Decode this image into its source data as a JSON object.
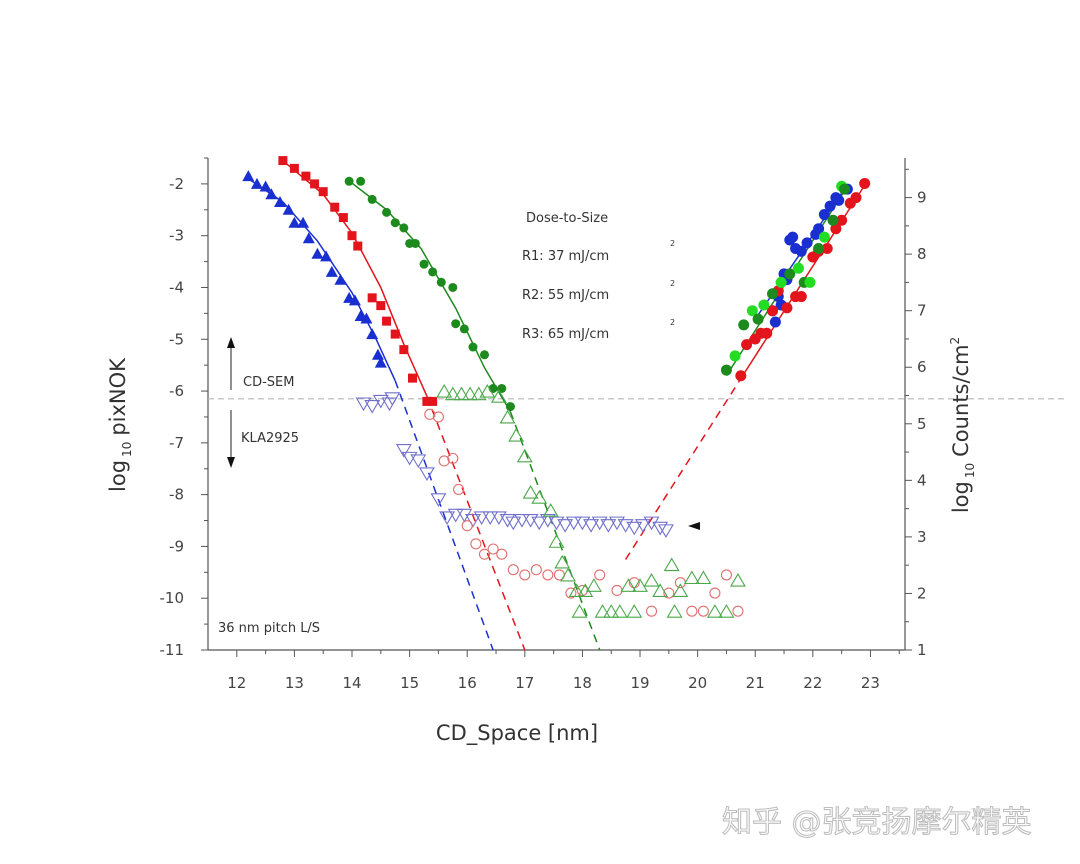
{
  "chart_data": {
    "type": "scatter",
    "xlabel": "CD_Space  [nm]",
    "ylabel_left_main": "log",
    "ylabel_left_sub": "10",
    "ylabel_left_rest": "pixNOK",
    "ylabel_right_main": "log",
    "ylabel_right_sub": "10",
    "ylabel_right_rest": "Counts/cm",
    "ylabel_right_sup": "2",
    "xlim": [
      11.5,
      23.6
    ],
    "ylim_left": [
      -11,
      -1.5
    ],
    "ylim_right": [
      1,
      9.7
    ],
    "x_ticks": [
      "12",
      "13",
      "14",
      "15",
      "16",
      "17",
      "18",
      "19",
      "20",
      "21",
      "22",
      "23"
    ],
    "y_left_ticks": [
      "-2",
      "-3",
      "-4",
      "-5",
      "-6",
      "-7",
      "-8",
      "-9",
      "-10",
      "-11"
    ],
    "y_right_ticks": [
      "1",
      "2",
      "3",
      "4",
      "5",
      "6",
      "7",
      "8",
      "9"
    ],
    "legend_title": "Dose-to-Size",
    "legend_entries": [
      "R1: 37 mJ/cm",
      "R2: 55 mJ/cm",
      "R3: 65 mJ/cm"
    ],
    "legend_superscript": "2",
    "annotations": {
      "cd_sem": "CD-SEM",
      "kla": "KLA2925",
      "pitch": "36 nm pitch L/S"
    },
    "threshold_line_y": -6.15,
    "colors": {
      "R1": "#1a2fd0",
      "R2": "#e3141b",
      "R3": "#1c8a1c",
      "R3_light": "#22dd22",
      "R1_open": "#7070cc",
      "R2_open": "#e07070",
      "R3_open": "#4aa84a"
    },
    "series": [
      {
        "name": "R1",
        "axis": "left",
        "marker": "triangle-filled",
        "points": [
          [
            12.2,
            -1.85
          ],
          [
            12.35,
            -2.0
          ],
          [
            12.5,
            -2.05
          ],
          [
            12.6,
            -2.2
          ],
          [
            12.75,
            -2.35
          ],
          [
            12.9,
            -2.5
          ],
          [
            13.0,
            -2.75
          ],
          [
            13.15,
            -2.75
          ],
          [
            13.25,
            -3.05
          ],
          [
            13.4,
            -3.35
          ],
          [
            13.55,
            -3.4
          ],
          [
            13.65,
            -3.7
          ],
          [
            13.8,
            -3.85
          ],
          [
            13.95,
            -4.2
          ],
          [
            14.05,
            -4.25
          ],
          [
            14.15,
            -4.55
          ],
          [
            14.25,
            -4.6
          ],
          [
            14.35,
            -4.9
          ],
          [
            14.45,
            -5.3
          ],
          [
            14.5,
            -5.45
          ]
        ]
      },
      {
        "name": "R2",
        "axis": "left",
        "marker": "square-filled",
        "points": [
          [
            12.8,
            -1.55
          ],
          [
            13.0,
            -1.7
          ],
          [
            13.2,
            -1.85
          ],
          [
            13.35,
            -2.0
          ],
          [
            13.5,
            -2.15
          ],
          [
            13.7,
            -2.45
          ],
          [
            13.85,
            -2.65
          ],
          [
            14.0,
            -3.0
          ],
          [
            14.1,
            -3.2
          ],
          [
            14.35,
            -4.2
          ],
          [
            14.5,
            -4.35
          ],
          [
            14.6,
            -4.65
          ],
          [
            14.75,
            -4.9
          ],
          [
            14.9,
            -5.2
          ],
          [
            15.05,
            -5.75
          ],
          [
            15.3,
            -6.2
          ],
          [
            15.4,
            -6.2
          ]
        ]
      },
      {
        "name": "R3",
        "axis": "left",
        "marker": "circle-filled",
        "points": [
          [
            13.95,
            -1.95
          ],
          [
            14.15,
            -1.95
          ],
          [
            14.35,
            -2.3
          ],
          [
            14.6,
            -2.55
          ],
          [
            14.75,
            -2.75
          ],
          [
            14.9,
            -2.85
          ],
          [
            15.0,
            -3.15
          ],
          [
            15.1,
            -3.15
          ],
          [
            15.25,
            -3.55
          ],
          [
            15.4,
            -3.7
          ],
          [
            15.55,
            -3.9
          ],
          [
            15.75,
            -4.0
          ],
          [
            15.8,
            -4.7
          ],
          [
            15.95,
            -4.8
          ],
          [
            16.1,
            -5.15
          ],
          [
            16.3,
            -5.3
          ],
          [
            16.45,
            -5.95
          ],
          [
            16.6,
            -5.95
          ],
          [
            16.75,
            -6.3
          ]
        ]
      },
      {
        "name": "R1 right",
        "axis": "right",
        "marker": "circle-filled",
        "points": [
          [
            21.3,
            7.0
          ],
          [
            21.35,
            6.8
          ],
          [
            21.4,
            7.25
          ],
          [
            21.45,
            7.1
          ],
          [
            21.5,
            7.65
          ],
          [
            21.55,
            7.55
          ],
          [
            21.6,
            8.25
          ],
          [
            21.65,
            8.3
          ],
          [
            21.7,
            8.1
          ],
          [
            21.8,
            8.05
          ],
          [
            21.9,
            8.2
          ],
          [
            22.05,
            8.35
          ],
          [
            22.1,
            8.45
          ],
          [
            22.2,
            8.7
          ],
          [
            22.3,
            8.85
          ],
          [
            22.4,
            9.0
          ],
          [
            22.45,
            8.95
          ],
          [
            22.6,
            9.15
          ]
        ]
      },
      {
        "name": "R2 right",
        "axis": "right",
        "marker": "circle-filled",
        "points": [
          [
            20.75,
            5.85
          ],
          [
            20.85,
            6.4
          ],
          [
            21.0,
            6.5
          ],
          [
            21.1,
            6.6
          ],
          [
            21.2,
            6.6
          ],
          [
            21.3,
            7.0
          ],
          [
            21.4,
            7.35
          ],
          [
            21.55,
            7.05
          ],
          [
            21.7,
            7.25
          ],
          [
            21.8,
            7.25
          ],
          [
            22.0,
            7.95
          ],
          [
            22.1,
            8.05
          ],
          [
            22.25,
            8.1
          ],
          [
            22.4,
            8.45
          ],
          [
            22.5,
            8.6
          ],
          [
            22.65,
            8.9
          ],
          [
            22.75,
            9.0
          ],
          [
            22.9,
            9.25
          ]
        ]
      },
      {
        "name": "R3 right",
        "axis": "right",
        "marker": "circle-filled",
        "points": [
          [
            20.5,
            5.95
          ],
          [
            20.65,
            6.2
          ],
          [
            20.8,
            6.75
          ],
          [
            20.95,
            7.0
          ],
          [
            21.05,
            6.85
          ],
          [
            21.15,
            7.1
          ],
          [
            21.3,
            7.3
          ],
          [
            21.45,
            7.5
          ],
          [
            21.6,
            7.65
          ],
          [
            21.75,
            7.75
          ],
          [
            21.85,
            7.5
          ],
          [
            21.95,
            7.5
          ],
          [
            22.1,
            8.1
          ],
          [
            22.2,
            8.3
          ],
          [
            22.35,
            8.6
          ],
          [
            22.5,
            9.2
          ],
          [
            22.55,
            9.15
          ]
        ]
      },
      {
        "name": "R1 open",
        "axis": "left",
        "marker": "triangle-down-open",
        "points": [
          [
            14.2,
            -6.25
          ],
          [
            14.35,
            -6.3
          ],
          [
            14.5,
            -6.2
          ],
          [
            14.65,
            -6.25
          ],
          [
            14.7,
            -6.15
          ],
          [
            14.9,
            -7.15
          ],
          [
            15.0,
            -7.3
          ],
          [
            15.15,
            -7.35
          ],
          [
            15.3,
            -7.6
          ],
          [
            15.5,
            -8.1
          ],
          [
            15.65,
            -8.45
          ],
          [
            15.8,
            -8.4
          ],
          [
            15.95,
            -8.4
          ],
          [
            16.1,
            -8.5
          ],
          [
            16.25,
            -8.45
          ],
          [
            16.4,
            -8.45
          ],
          [
            16.55,
            -8.45
          ],
          [
            16.7,
            -8.5
          ],
          [
            16.8,
            -8.55
          ],
          [
            16.95,
            -8.5
          ],
          [
            17.1,
            -8.5
          ],
          [
            17.25,
            -8.55
          ],
          [
            17.4,
            -8.5
          ],
          [
            17.55,
            -8.55
          ],
          [
            17.7,
            -8.6
          ],
          [
            17.85,
            -8.55
          ],
          [
            18.0,
            -8.55
          ],
          [
            18.15,
            -8.6
          ],
          [
            18.3,
            -8.55
          ],
          [
            18.45,
            -8.6
          ],
          [
            18.6,
            -8.55
          ],
          [
            18.75,
            -8.6
          ],
          [
            18.9,
            -8.65
          ],
          [
            19.05,
            -8.6
          ],
          [
            19.2,
            -8.55
          ],
          [
            19.35,
            -8.65
          ],
          [
            19.45,
            -8.7
          ]
        ]
      },
      {
        "name": "R2 open",
        "axis": "left",
        "marker": "circle-open",
        "points": [
          [
            15.35,
            -6.45
          ],
          [
            15.5,
            -6.5
          ],
          [
            15.6,
            -7.35
          ],
          [
            15.75,
            -7.3
          ],
          [
            15.85,
            -7.9
          ],
          [
            16.0,
            -8.6
          ],
          [
            16.15,
            -8.95
          ],
          [
            16.3,
            -9.15
          ],
          [
            16.45,
            -9.05
          ],
          [
            16.6,
            -9.15
          ],
          [
            16.8,
            -9.45
          ],
          [
            17.0,
            -9.55
          ],
          [
            17.2,
            -9.45
          ],
          [
            17.4,
            -9.55
          ],
          [
            17.6,
            -9.55
          ],
          [
            17.8,
            -9.9
          ],
          [
            18.0,
            -9.85
          ],
          [
            18.3,
            -9.55
          ],
          [
            18.6,
            -9.85
          ],
          [
            18.9,
            -9.7
          ],
          [
            19.2,
            -10.25
          ],
          [
            19.5,
            -9.9
          ],
          [
            19.7,
            -9.7
          ],
          [
            19.9,
            -10.25
          ],
          [
            20.1,
            -10.25
          ],
          [
            20.3,
            -9.9
          ],
          [
            20.5,
            -9.55
          ],
          [
            20.7,
            -10.25
          ]
        ]
      },
      {
        "name": "R3 open",
        "axis": "left",
        "marker": "triangle-up-open",
        "points": [
          [
            15.6,
            -6.0
          ],
          [
            15.75,
            -6.05
          ],
          [
            15.9,
            -6.05
          ],
          [
            16.05,
            -6.05
          ],
          [
            16.2,
            -6.05
          ],
          [
            16.35,
            -6.0
          ],
          [
            16.55,
            -6.1
          ],
          [
            16.7,
            -6.5
          ],
          [
            16.85,
            -6.85
          ],
          [
            17.0,
            -7.25
          ],
          [
            17.1,
            -7.95
          ],
          [
            17.25,
            -8.05
          ],
          [
            17.45,
            -8.3
          ],
          [
            17.55,
            -8.9
          ],
          [
            17.65,
            -9.3
          ],
          [
            17.75,
            -9.55
          ],
          [
            17.9,
            -9.85
          ],
          [
            18.05,
            -9.85
          ],
          [
            18.2,
            -9.75
          ],
          [
            18.35,
            -10.25
          ],
          [
            18.5,
            -10.25
          ],
          [
            18.65,
            -10.25
          ],
          [
            18.8,
            -9.75
          ],
          [
            19.0,
            -9.75
          ],
          [
            19.2,
            -9.65
          ],
          [
            19.35,
            -9.85
          ],
          [
            19.55,
            -9.35
          ],
          [
            19.7,
            -9.85
          ],
          [
            19.9,
            -9.6
          ],
          [
            20.1,
            -9.6
          ],
          [
            20.3,
            -10.25
          ],
          [
            20.5,
            -10.25
          ],
          [
            20.7,
            -9.65
          ],
          [
            18.9,
            -10.25
          ],
          [
            19.6,
            -10.25
          ],
          [
            17.95,
            -10.25
          ]
        ]
      }
    ],
    "fit_lines": [
      {
        "name": "R1 fit",
        "style": "solid",
        "points": [
          [
            12.2,
            -1.9
          ],
          [
            12.8,
            -2.35
          ],
          [
            13.4,
            -3.1
          ],
          [
            14.0,
            -4.1
          ],
          [
            14.4,
            -4.95
          ],
          [
            14.75,
            -5.8
          ]
        ]
      },
      {
        "name": "R1 extrapolation",
        "style": "dashed",
        "points": [
          [
            14.75,
            -5.8
          ],
          [
            16.45,
            -11.0
          ]
        ]
      },
      {
        "name": "R2 fit",
        "style": "solid",
        "points": [
          [
            12.85,
            -1.6
          ],
          [
            13.5,
            -2.2
          ],
          [
            14.0,
            -2.95
          ],
          [
            14.5,
            -4.0
          ],
          [
            14.9,
            -5.1
          ],
          [
            15.3,
            -6.1
          ]
        ]
      },
      {
        "name": "R2 extrapolation",
        "style": "dashed",
        "points": [
          [
            15.3,
            -6.1
          ],
          [
            17.0,
            -11.0
          ]
        ]
      },
      {
        "name": "R3 fit",
        "style": "solid",
        "points": [
          [
            13.9,
            -1.9
          ],
          [
            14.6,
            -2.5
          ],
          [
            15.2,
            -3.25
          ],
          [
            15.8,
            -4.4
          ],
          [
            16.3,
            -5.55
          ],
          [
            16.75,
            -6.4
          ]
        ]
      },
      {
        "name": "R3 extrapolation",
        "style": "dashed",
        "points": [
          [
            16.75,
            -6.4
          ],
          [
            18.3,
            -11.0
          ]
        ]
      },
      {
        "name": "R1 right fit",
        "style": "solid",
        "axis": "right",
        "points": [
          [
            21.0,
            6.85
          ],
          [
            22.55,
            9.15
          ]
        ]
      },
      {
        "name": "R2 right fit",
        "style": "solid",
        "axis": "right",
        "points": [
          [
            20.75,
            5.8
          ],
          [
            22.95,
            9.3
          ]
        ]
      },
      {
        "name": "R3 right fit",
        "style": "solid",
        "axis": "right",
        "points": [
          [
            20.5,
            5.85
          ],
          [
            22.6,
            9.2
          ]
        ]
      },
      {
        "name": "R2 right extrapolation",
        "style": "dashed",
        "axis": "right",
        "points": [
          [
            18.75,
            2.6
          ],
          [
            20.75,
            5.8
          ]
        ]
      }
    ]
  },
  "watermark": "知乎 @张竞扬摩尔精英"
}
